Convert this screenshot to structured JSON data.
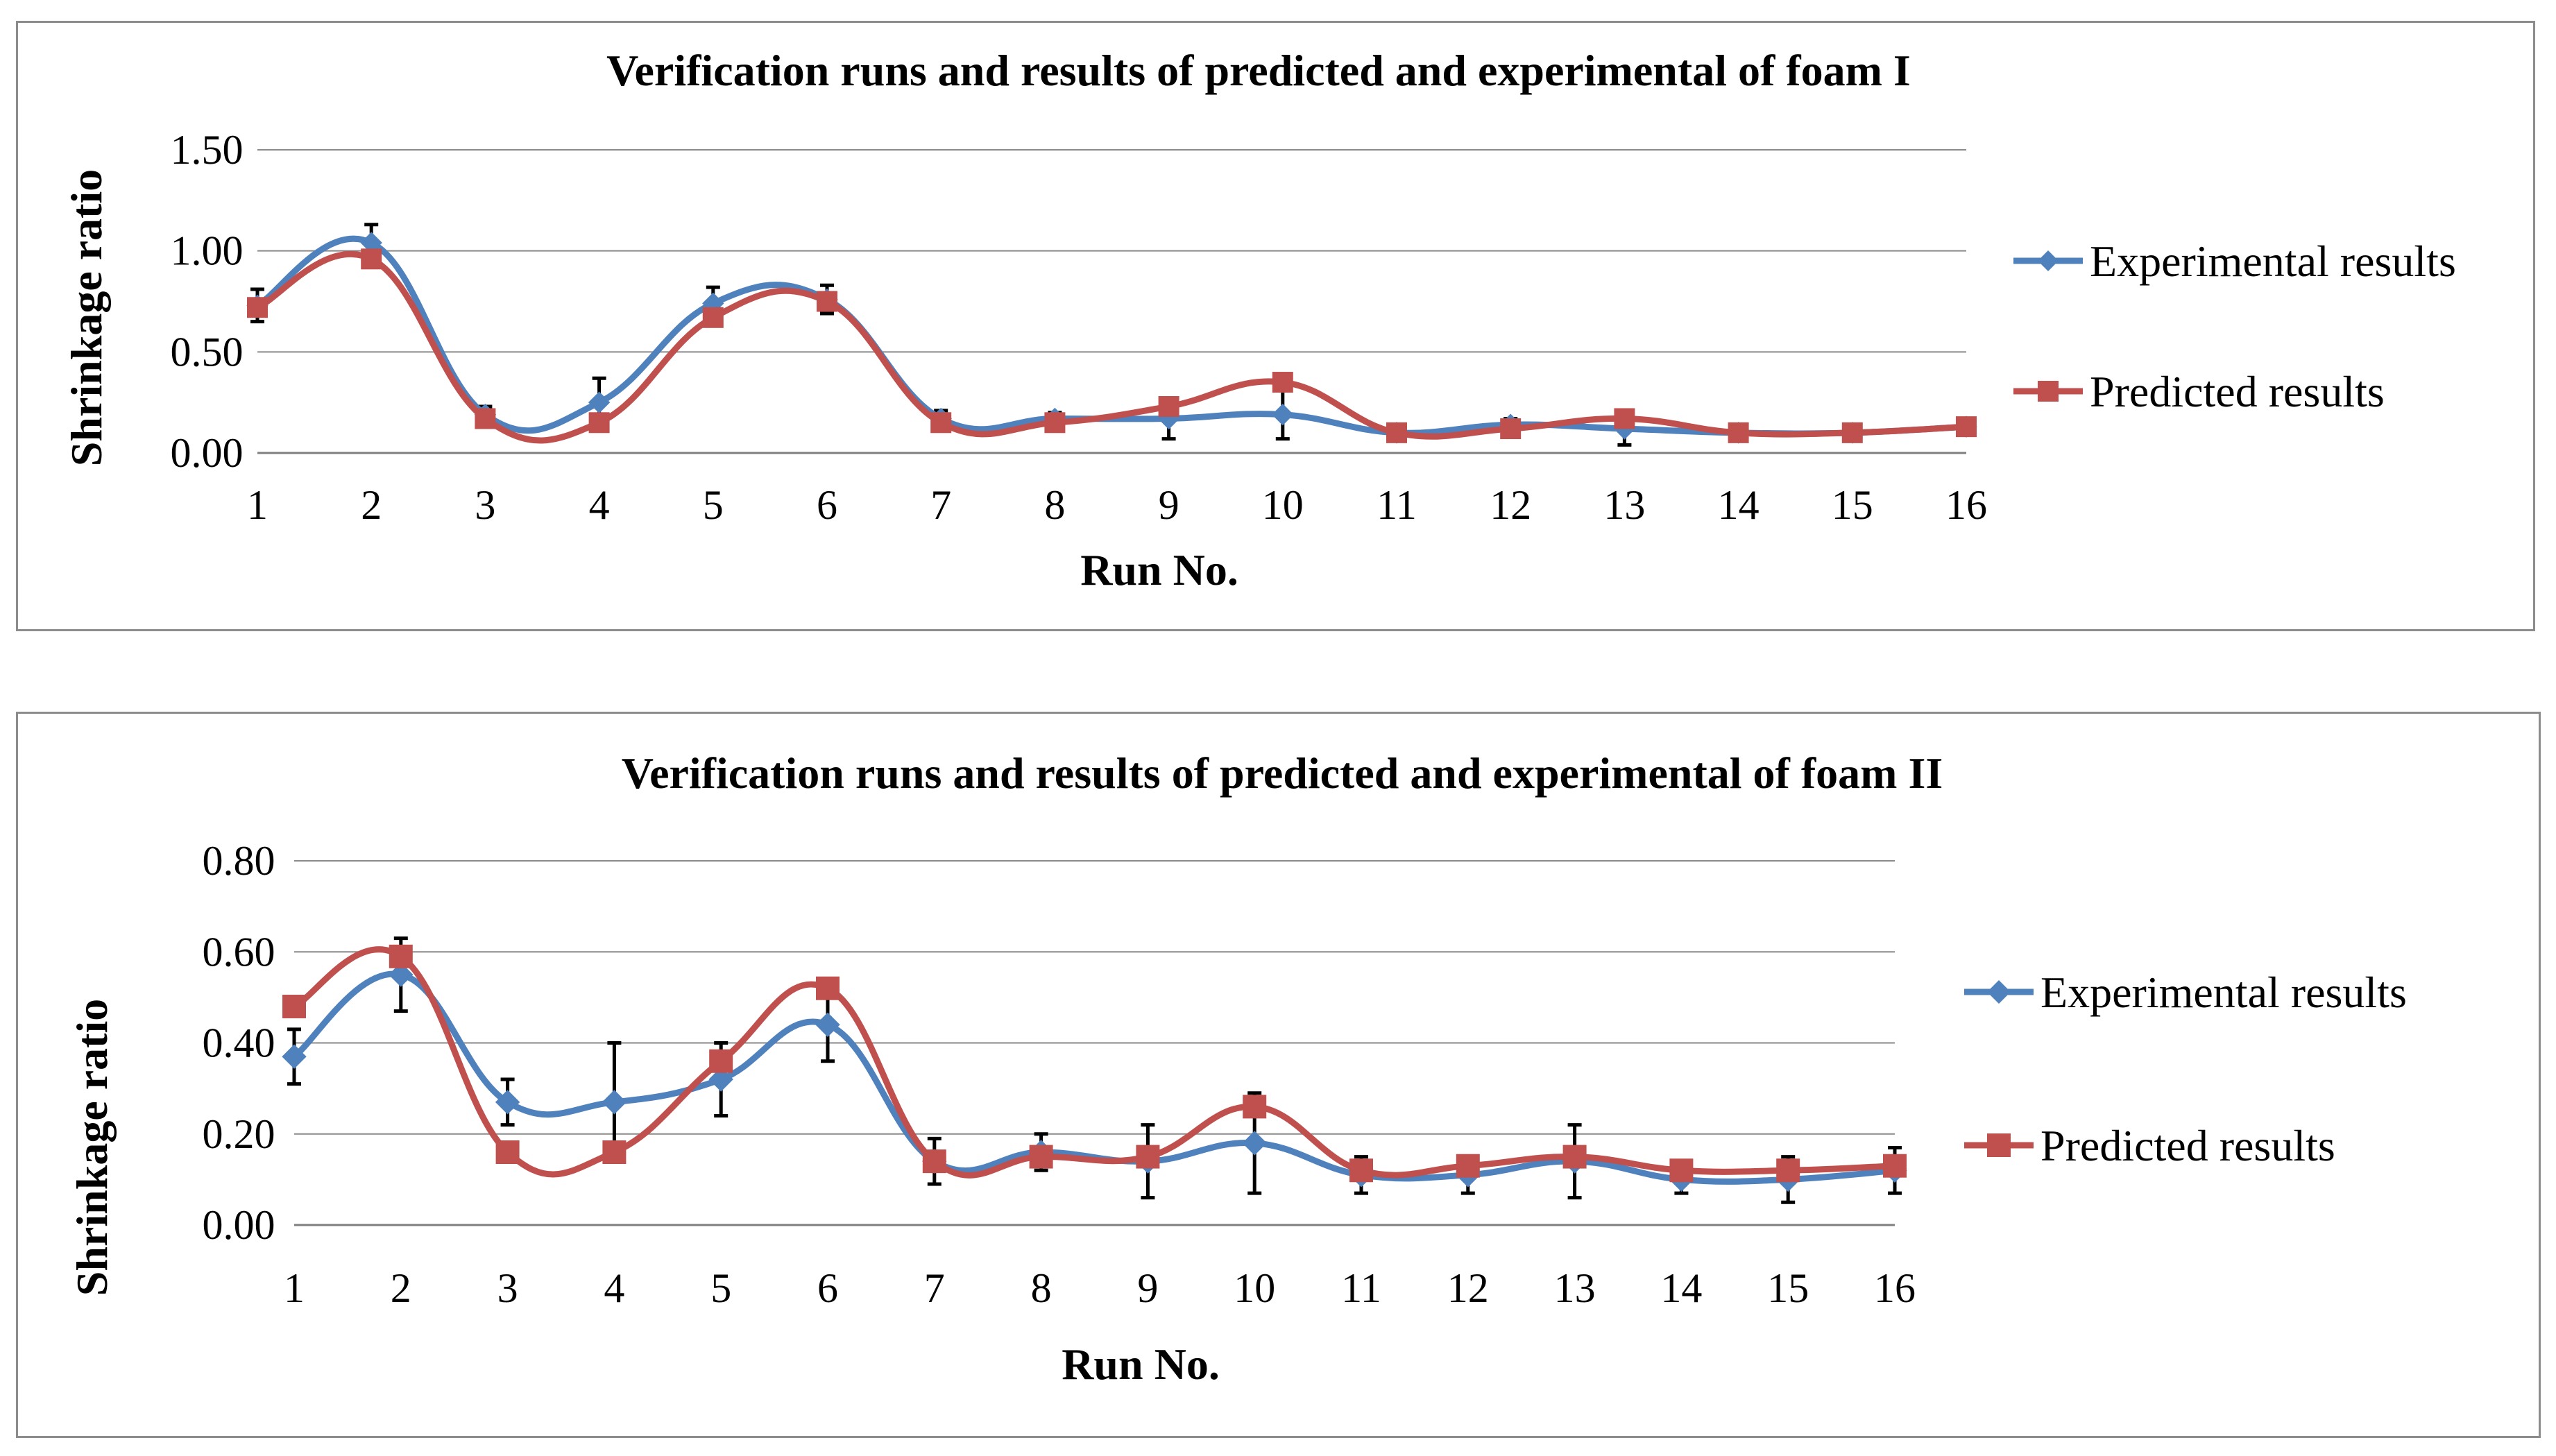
{
  "chart_data": [
    {
      "type": "line",
      "title": "Verification runs and results of predicted and experimental  of foam I",
      "xlabel": "Run No.",
      "ylabel": "Shrinkage ratio",
      "categories": [
        "1",
        "2",
        "3",
        "4",
        "5",
        "6",
        "7",
        "8",
        "9",
        "10",
        "11",
        "12",
        "13",
        "14",
        "15",
        "16"
      ],
      "ylim": [
        0,
        1.5
      ],
      "yticks": [
        "0.00",
        "0.50",
        "1.00",
        "1.50"
      ],
      "ytick_values": [
        0,
        0.5,
        1.0,
        1.5
      ],
      "grid": true,
      "legend_position": "right",
      "series": [
        {
          "name": "Experimental results",
          "color": "#4f81bd",
          "marker": "diamond",
          "values": [
            0.73,
            1.04,
            0.19,
            0.25,
            0.74,
            0.76,
            0.17,
            0.17,
            0.17,
            0.19,
            0.1,
            0.14,
            0.12,
            0.1,
            0.1,
            0.13
          ],
          "errors": [
            0.08,
            0.09,
            0.04,
            0.12,
            0.08,
            0.07,
            0.04,
            0.03,
            0.1,
            0.12,
            0.03,
            0.03,
            0.08,
            0.03,
            0.03,
            0.04
          ]
        },
        {
          "name": "Predicted results",
          "color": "#c0504d",
          "marker": "square",
          "values": [
            0.72,
            0.96,
            0.17,
            0.15,
            0.67,
            0.75,
            0.15,
            0.15,
            0.23,
            0.35,
            0.1,
            0.12,
            0.17,
            0.1,
            0.1,
            0.13
          ]
        }
      ]
    },
    {
      "type": "line",
      "title": "Verification runs and results of predicted and experimental of foam II",
      "xlabel": "Run No.",
      "ylabel": "Shrinkage ratio",
      "categories": [
        "1",
        "2",
        "3",
        "4",
        "5",
        "6",
        "7",
        "8",
        "9",
        "10",
        "11",
        "12",
        "13",
        "14",
        "15",
        "16"
      ],
      "ylim": [
        0,
        0.8
      ],
      "yticks": [
        "0.00",
        "0.20",
        "0.40",
        "0.60",
        "0.80"
      ],
      "ytick_values": [
        0,
        0.2,
        0.4,
        0.6,
        0.8
      ],
      "grid": true,
      "legend_position": "right",
      "series": [
        {
          "name": "Experimental results",
          "color": "#4f81bd",
          "marker": "diamond",
          "values": [
            0.37,
            0.55,
            0.27,
            0.27,
            0.32,
            0.44,
            0.14,
            0.16,
            0.14,
            0.18,
            0.11,
            0.11,
            0.14,
            0.1,
            0.1,
            0.12
          ],
          "errors": [
            0.06,
            0.08,
            0.05,
            0.13,
            0.08,
            0.08,
            0.05,
            0.04,
            0.08,
            0.11,
            0.04,
            0.04,
            0.08,
            0.03,
            0.05,
            0.05
          ]
        },
        {
          "name": "Predicted results",
          "color": "#c0504d",
          "marker": "square",
          "values": [
            0.48,
            0.59,
            0.16,
            0.16,
            0.36,
            0.52,
            0.14,
            0.15,
            0.15,
            0.26,
            0.12,
            0.13,
            0.15,
            0.12,
            0.12,
            0.13
          ]
        }
      ]
    }
  ]
}
